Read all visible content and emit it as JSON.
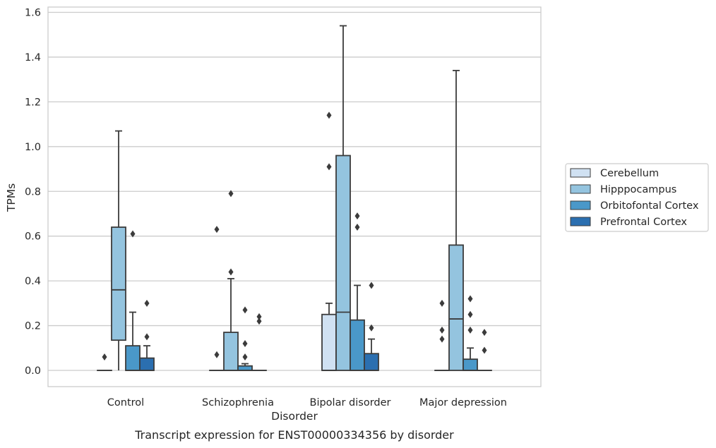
{
  "chart_data": {
    "type": "box",
    "title": "",
    "caption": "Transcript expression for ENST00000334356 by disorder",
    "xlabel": "Disorder",
    "ylabel": "TPMs",
    "ylim": [
      -0.075,
      1.62
    ],
    "yticks": [
      0.0,
      0.2,
      0.4,
      0.6,
      0.8,
      1.0,
      1.2,
      1.4,
      1.6
    ],
    "ytick_labels": [
      "0.0",
      "0.2",
      "0.4",
      "0.6",
      "0.8",
      "1.0",
      "1.2",
      "1.4",
      "1.6"
    ],
    "grid": "horizontal",
    "legend_position": "right",
    "categories": [
      "Control",
      "Schizophrenia",
      "Bipolar disorder",
      "Major depression"
    ],
    "series": [
      {
        "name": "Cerebellum",
        "color": "#d0e1f2",
        "boxes": [
          {
            "min": 0,
            "q1": 0,
            "median": 0,
            "q3": 0,
            "max": 0,
            "outliers": [
              0.06
            ]
          },
          {
            "min": 0,
            "q1": 0,
            "median": 0,
            "q3": 0,
            "max": 0,
            "outliers": [
              0.63,
              0.07
            ]
          },
          {
            "min": 0,
            "q1": 0,
            "median": 0,
            "q3": 0.25,
            "max": 0.3,
            "outliers": [
              1.14,
              0.91
            ]
          },
          {
            "min": 0,
            "q1": 0,
            "median": 0,
            "q3": 0,
            "max": 0,
            "outliers": [
              0.3,
              0.18,
              0.14
            ]
          }
        ]
      },
      {
        "name": "Hipppocampus",
        "color": "#94c4df",
        "boxes": [
          {
            "min": 0,
            "q1": 0.135,
            "median": 0.36,
            "q3": 0.64,
            "max": 1.07,
            "outliers": []
          },
          {
            "min": 0,
            "q1": 0,
            "median": 0,
            "q3": 0.17,
            "max": 0.41,
            "outliers": [
              0.79,
              0.44
            ]
          },
          {
            "min": 0,
            "q1": 0,
            "median": 0.26,
            "q3": 0.96,
            "max": 1.54,
            "outliers": []
          },
          {
            "min": 0,
            "q1": 0,
            "median": 0.23,
            "q3": 0.56,
            "max": 1.34,
            "outliers": []
          }
        ]
      },
      {
        "name": "Orbitofontal Cortex",
        "color": "#4a98c9",
        "boxes": [
          {
            "min": 0,
            "q1": 0,
            "median": 0,
            "q3": 0.11,
            "max": 0.26,
            "outliers": [
              0.61
            ]
          },
          {
            "min": 0,
            "q1": 0,
            "median": 0,
            "q3": 0.02,
            "max": 0.03,
            "outliers": [
              0.27,
              0.12,
              0.06
            ]
          },
          {
            "min": 0,
            "q1": 0,
            "median": 0,
            "q3": 0.225,
            "max": 0.38,
            "outliers": [
              0.69,
              0.64
            ]
          },
          {
            "min": 0,
            "q1": 0,
            "median": 0,
            "q3": 0.05,
            "max": 0.1,
            "outliers": [
              0.32,
              0.25,
              0.18
            ]
          }
        ]
      },
      {
        "name": "Prefrontal Cortex",
        "color": "#2b6fb0",
        "boxes": [
          {
            "min": 0,
            "q1": 0,
            "median": 0,
            "q3": 0.055,
            "max": 0.11,
            "outliers": [
              0.3,
              0.15
            ]
          },
          {
            "min": 0,
            "q1": 0,
            "median": 0,
            "q3": 0,
            "max": 0,
            "outliers": [
              0.24,
              0.22
            ]
          },
          {
            "min": 0,
            "q1": 0,
            "median": 0,
            "q3": 0.075,
            "max": 0.14,
            "outliers": [
              0.38,
              0.19
            ]
          },
          {
            "min": 0,
            "q1": 0,
            "median": 0,
            "q3": 0,
            "max": 0,
            "outliers": [
              0.17,
              0.09
            ]
          }
        ]
      }
    ]
  }
}
